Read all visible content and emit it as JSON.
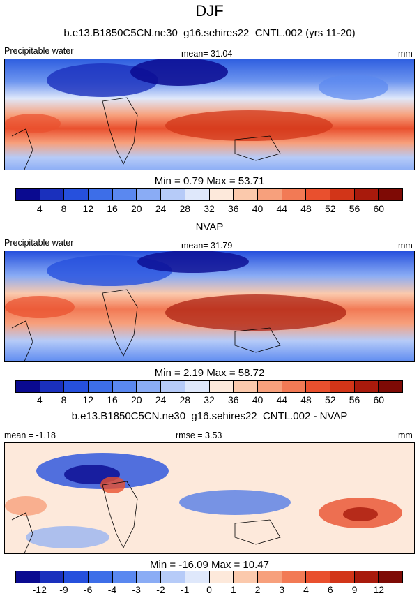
{
  "page": {
    "title": "DJF",
    "subtitle": "b.e13.B1850C5CN.ne30_g16.sehires22_CNTL.002 (yrs 11-20)",
    "units": "mm"
  },
  "chart_data": [
    {
      "type": "heatmap",
      "title": "b.e13.B1850C5CN.ne30_g16.sehires22_CNTL.002 (yrs 11-20)",
      "left_label": "Precipitable water",
      "center_label": "mean=  31.04",
      "units": "mm",
      "stats_text": "Min =   0.79 Max =  53.71",
      "min": 0.79,
      "max": 53.71,
      "mean": 31.04,
      "colorbar_ticks": [
        "4",
        "8",
        "12",
        "16",
        "20",
        "24",
        "28",
        "32",
        "36",
        "40",
        "44",
        "48",
        "52",
        "56",
        "60"
      ],
      "colorbar_colors": [
        "#0a0a90",
        "#1a30bd",
        "#2650dd",
        "#3d6ee8",
        "#5a88f0",
        "#8aacf5",
        "#b6cbf8",
        "#dfe8fb",
        "#fde9db",
        "#fbc9ac",
        "#f7a07c",
        "#f27a55",
        "#e9502e",
        "#d23518",
        "#a81a0c",
        "#7e0a05"
      ]
    },
    {
      "type": "heatmap",
      "title": "NVAP",
      "left_label": "Precipitable water",
      "center_label": "mean=  31.79",
      "units": "mm",
      "stats_text": "Min =   2.19 Max =  58.72",
      "min": 2.19,
      "max": 58.72,
      "mean": 31.79,
      "colorbar_ticks": [
        "4",
        "8",
        "12",
        "16",
        "20",
        "24",
        "28",
        "32",
        "36",
        "40",
        "44",
        "48",
        "52",
        "56",
        "60"
      ],
      "colorbar_colors": [
        "#0a0a90",
        "#1a30bd",
        "#2650dd",
        "#3d6ee8",
        "#5a88f0",
        "#8aacf5",
        "#b6cbf8",
        "#dfe8fb",
        "#fde9db",
        "#fbc9ac",
        "#f7a07c",
        "#f27a55",
        "#e9502e",
        "#d23518",
        "#a81a0c",
        "#7e0a05"
      ]
    },
    {
      "type": "heatmap",
      "title": "b.e13.B1850C5CN.ne30_g16.sehires22_CNTL.002 - NVAP",
      "left_label": "mean =  -1.18",
      "center_label": "rmse =   3.53",
      "units": "mm",
      "stats_text": "Min = -16.09 Max =  10.47",
      "min": -16.09,
      "max": 10.47,
      "mean": -1.18,
      "rmse": 3.53,
      "colorbar_ticks": [
        "-12",
        "-9",
        "-6",
        "-4",
        "-3",
        "-2",
        "-1",
        "0",
        "1",
        "2",
        "3",
        "4",
        "6",
        "9",
        "12"
      ],
      "colorbar_colors": [
        "#0a0a90",
        "#1a30bd",
        "#2650dd",
        "#3d6ee8",
        "#5a88f0",
        "#8aacf5",
        "#b6cbf8",
        "#dfe8fb",
        "#fde9db",
        "#fbc9ac",
        "#f7a07c",
        "#f27a55",
        "#e9502e",
        "#d23518",
        "#a81a0c",
        "#7e0a05"
      ]
    }
  ]
}
